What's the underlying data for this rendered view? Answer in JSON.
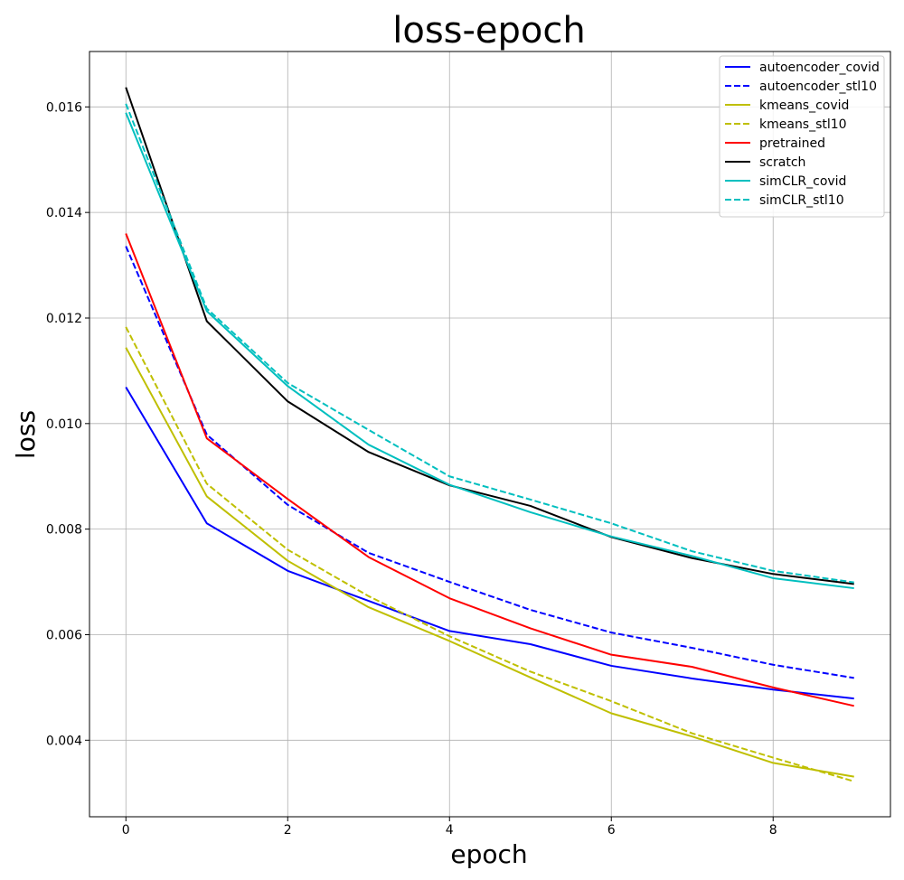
{
  "chart_data": {
    "type": "line",
    "title": "loss-epoch",
    "xlabel": "epoch",
    "ylabel": "loss",
    "x": [
      0,
      1,
      2,
      3,
      4,
      5,
      6,
      7,
      8,
      9
    ],
    "xlim": [
      -0.45,
      9.45
    ],
    "ylim": [
      0.00255,
      0.01705
    ],
    "xticks": [
      0,
      2,
      4,
      6,
      8
    ],
    "xtick_labels": [
      "0",
      "2",
      "4",
      "6",
      "8"
    ],
    "yticks": [
      0.004,
      0.006,
      0.008,
      0.01,
      0.012,
      0.014,
      0.016
    ],
    "ytick_labels": [
      "0.004",
      "0.006",
      "0.008",
      "0.010",
      "0.012",
      "0.014",
      "0.016"
    ],
    "grid": true,
    "legend_position": "top-right",
    "series": [
      {
        "name": "autoencoder_covid",
        "color": "#0000ff",
        "dashed": false,
        "values": [
          0.01069,
          0.00811,
          0.00721,
          0.00664,
          0.00607,
          0.00582,
          0.00541,
          0.00517,
          0.00496,
          0.00479
        ]
      },
      {
        "name": "autoencoder_stl10",
        "color": "#0000ff",
        "dashed": true,
        "values": [
          0.01336,
          0.00979,
          0.00846,
          0.00755,
          0.007,
          0.00647,
          0.00604,
          0.00575,
          0.00543,
          0.00518
        ]
      },
      {
        "name": "kmeans_covid",
        "color": "#bfbf00",
        "dashed": false,
        "values": [
          0.01144,
          0.00862,
          0.0074,
          0.00652,
          0.00588,
          0.00519,
          0.00451,
          0.00407,
          0.00357,
          0.00331
        ]
      },
      {
        "name": "kmeans_stl10",
        "color": "#bfbf00",
        "dashed": true,
        "values": [
          0.01183,
          0.00886,
          0.00761,
          0.00673,
          0.00597,
          0.0053,
          0.00474,
          0.00413,
          0.00367,
          0.00322
        ]
      },
      {
        "name": "pretrained",
        "color": "#ff0000",
        "dashed": false,
        "values": [
          0.0136,
          0.00972,
          0.00857,
          0.00747,
          0.00669,
          0.00612,
          0.00562,
          0.00539,
          0.005,
          0.00465
        ]
      },
      {
        "name": "scratch",
        "color": "#000000",
        "dashed": false,
        "values": [
          0.01637,
          0.01194,
          0.01042,
          0.00946,
          0.00883,
          0.00844,
          0.00785,
          0.00745,
          0.00715,
          0.00696
        ]
      },
      {
        "name": "simCLR_covid",
        "color": "#00bfbf",
        "dashed": false,
        "values": [
          0.01589,
          0.01213,
          0.01071,
          0.0096,
          0.00884,
          0.00832,
          0.00786,
          0.00749,
          0.00707,
          0.00688
        ]
      },
      {
        "name": "simCLR_stl10",
        "color": "#00bfbf",
        "dashed": true,
        "values": [
          0.01606,
          0.01218,
          0.01077,
          0.00988,
          0.009,
          0.00856,
          0.00811,
          0.00758,
          0.00721,
          0.00699
        ]
      }
    ]
  }
}
